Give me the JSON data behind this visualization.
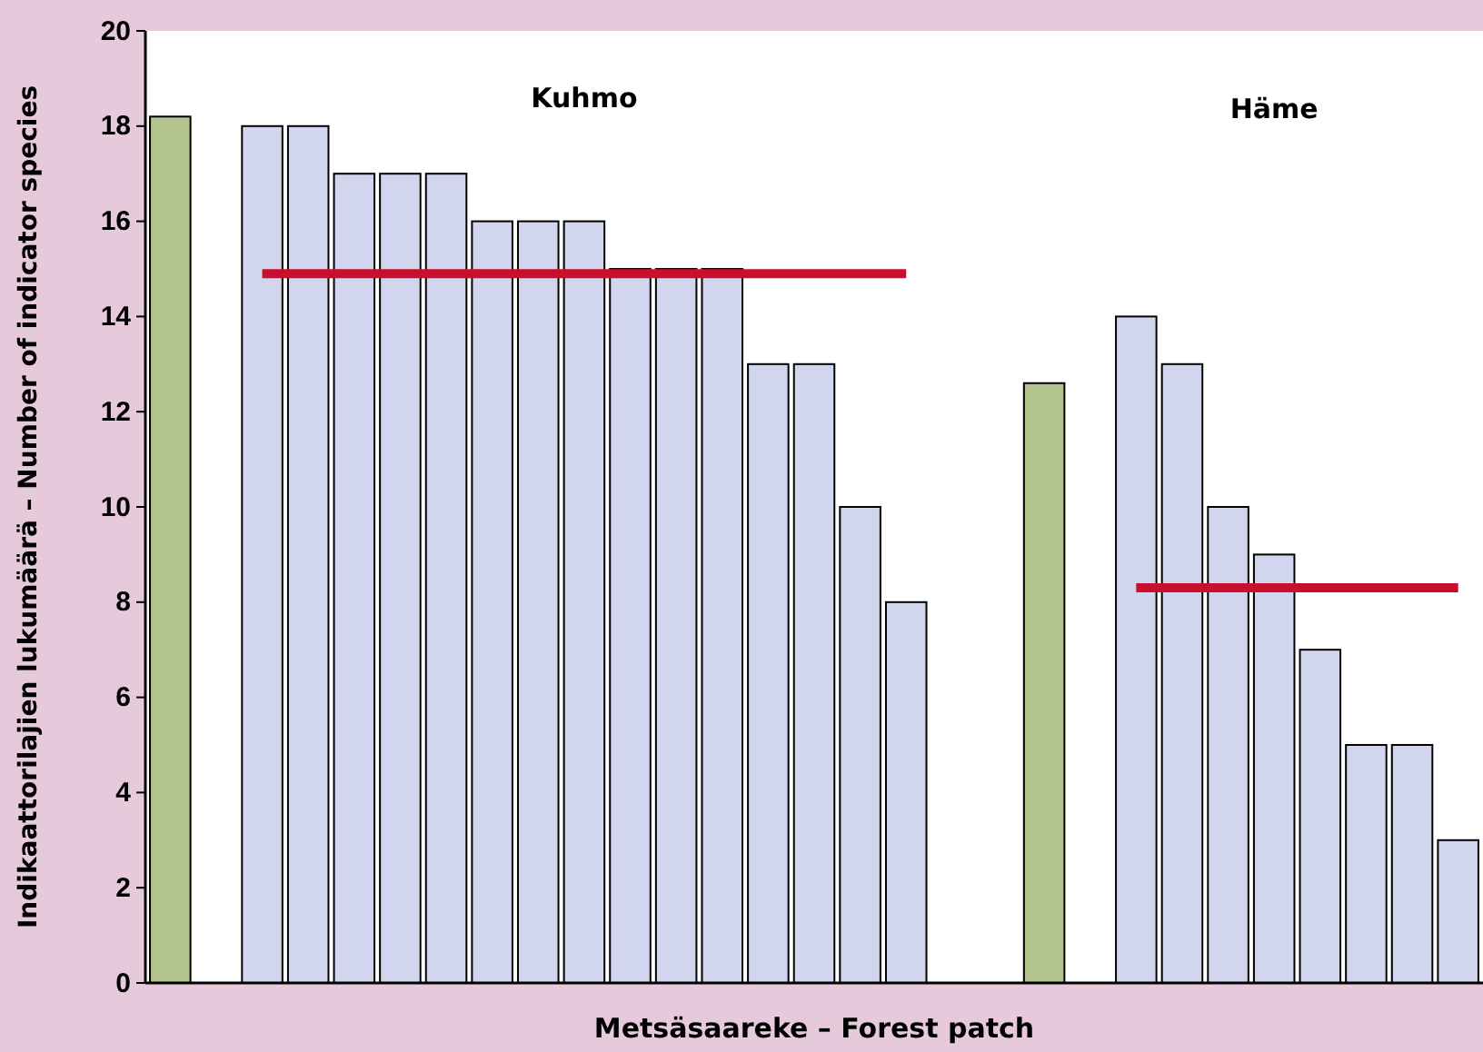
{
  "chart_data": {
    "type": "bar",
    "xlabel": "Metsäsaareke – Forest patch",
    "ylabel": "Indikaattorilajien lukumäärä – Number of indicator species",
    "categories": [
      null,
      null,
      null,
      null,
      null,
      null,
      null,
      null,
      null,
      null,
      null,
      null,
      null,
      null,
      null,
      null,
      null,
      null,
      null,
      null,
      null,
      null,
      null,
      null,
      null,
      null,
      null,
      null,
      null
    ],
    "series": [
      {
        "values": [
          18.2,
          null,
          18,
          18,
          17,
          17,
          17,
          16,
          16,
          16,
          15,
          15,
          15,
          13,
          13,
          10,
          8,
          null,
          null,
          12.6,
          null,
          14,
          13,
          10,
          9,
          7,
          5,
          5,
          3
        ],
        "colors": [
          "#b4c48f",
          null,
          "#d2d5ee",
          "#d2d5ee",
          "#d2d5ee",
          "#d2d5ee",
          "#d2d5ee",
          "#d2d5ee",
          "#d2d5ee",
          "#d2d5ee",
          "#d2d5ee",
          "#d2d5ee",
          "#d2d5ee",
          "#d2d5ee",
          "#d2d5ee",
          "#d2d5ee",
          "#d2d5ee",
          null,
          null,
          "#b4c48f",
          null,
          "#d2d5ee",
          "#d2d5ee",
          "#d2d5ee",
          "#d2d5ee",
          "#d2d5ee",
          "#d2d5ee",
          "#d2d5ee",
          "#d2d5ee"
        ]
      },
      {
        "type": "line",
        "color": "#c8102e",
        "values": [
          null,
          null,
          14.9,
          14.9,
          14.9,
          14.9,
          14.9,
          14.9,
          14.9,
          14.9,
          14.9,
          14.9,
          14.9,
          14.9,
          14.9,
          14.9,
          14.9,
          null,
          null,
          null,
          null,
          8.3,
          8.3,
          8.3,
          8.3,
          8.3,
          8.3,
          8.3,
          8.3
        ]
      }
    ],
    "annotations": [
      "Kuhmo",
      "Häme"
    ],
    "ylim": [
      0,
      20
    ],
    "yticks": [
      0,
      2,
      4,
      6,
      8,
      10,
      12,
      14,
      16,
      18,
      20
    ],
    "grid": false
  }
}
